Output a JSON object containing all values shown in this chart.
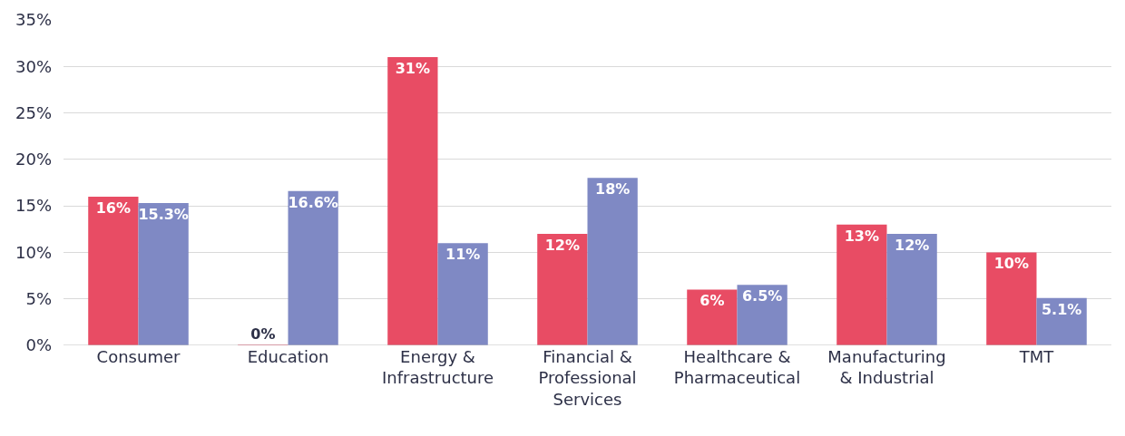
{
  "chart_data": {
    "type": "bar",
    "categories": [
      "Consumer",
      "Education",
      "Energy &\nInfrastructure",
      "Financial &\nProfessional\nServices",
      "Healthcare &\nPharmaceutical",
      "Manufacturing\n& Industrial",
      "TMT"
    ],
    "series": [
      {
        "color": "#e84c64",
        "values": [
          16,
          0,
          31,
          12,
          6,
          13,
          10
        ],
        "value_labels": [
          "16%",
          "0%",
          "31%",
          "12%",
          "6%",
          "13%",
          "10%"
        ]
      },
      {
        "color": "#7f89c4",
        "values": [
          15.3,
          16.6,
          11,
          18,
          6.5,
          12,
          5.1
        ],
        "value_labels": [
          "15.3%",
          "16.6%",
          "11%",
          "18%",
          "6.5%",
          "12%",
          "5.1%"
        ]
      }
    ],
    "ylim": [
      0,
      35
    ],
    "yticks": [
      {
        "value": 0,
        "label": "0%"
      },
      {
        "value": 5,
        "label": "5%"
      },
      {
        "value": 10,
        "label": "10%"
      },
      {
        "value": 15,
        "label": "15%"
      },
      {
        "value": 20,
        "label": "20%"
      },
      {
        "value": 25,
        "label": "25%"
      },
      {
        "value": 30,
        "label": "30%"
      },
      {
        "value": 35,
        "label": "35%"
      }
    ],
    "grid": "y"
  }
}
